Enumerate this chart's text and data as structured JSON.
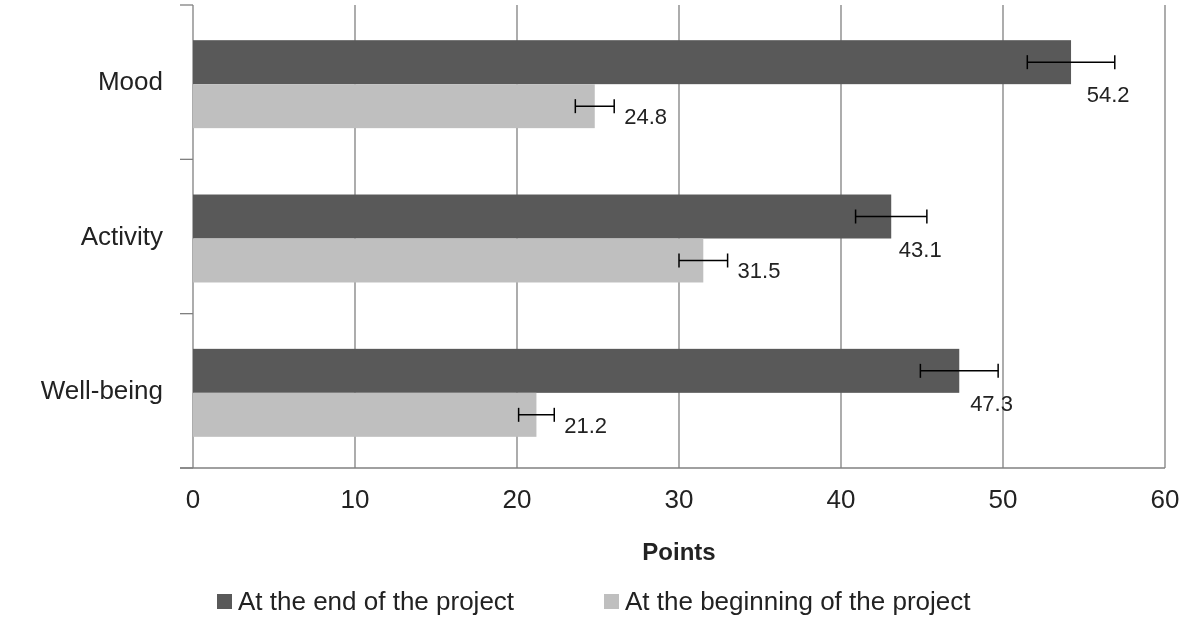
{
  "chart_data": {
    "type": "bar",
    "orientation": "horizontal",
    "xlabel": "Points",
    "categories": [
      "Mood",
      "Activity",
      "Well-being"
    ],
    "series": [
      {
        "name": "At the end of the project",
        "color": "#595959",
        "values": [
          54.2,
          43.1,
          47.3
        ],
        "errors": [
          2.7,
          2.2,
          2.4
        ]
      },
      {
        "name": "At the beginning of the project",
        "color": "#bfbfbf",
        "values": [
          24.8,
          31.5,
          21.2
        ],
        "errors": [
          1.2,
          1.5,
          1.1
        ]
      }
    ],
    "xlim": [
      0,
      60
    ],
    "xticks": [
      0,
      10,
      20,
      30,
      40,
      50,
      60
    ],
    "grid": "x",
    "data_labels": true,
    "legend": "bottom"
  }
}
